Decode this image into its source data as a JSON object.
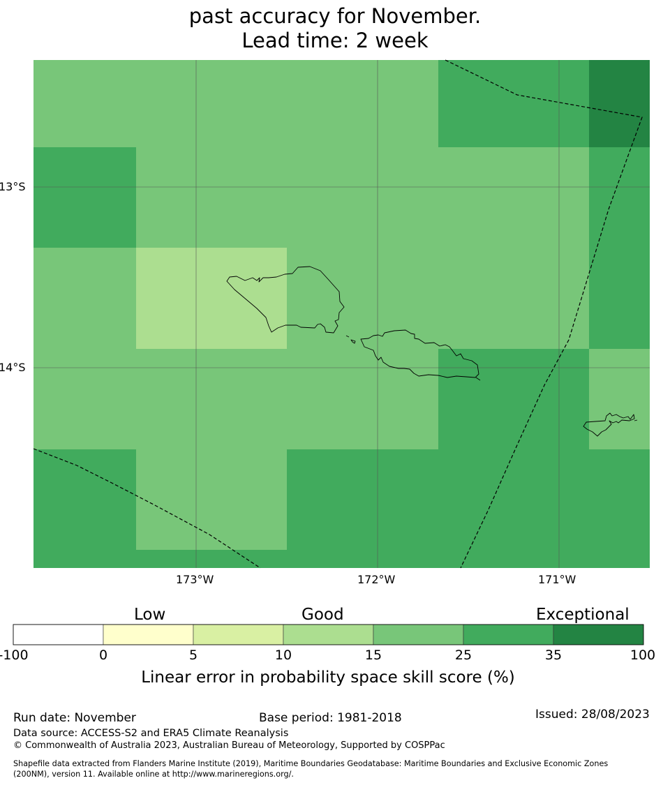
{
  "title": {
    "line1": "past accuracy for November.",
    "line2": "Lead time: 2 week"
  },
  "map": {
    "lat_labels": [
      "13°S",
      "14°S"
    ],
    "lon_labels": [
      "173°W",
      "172°W",
      "171°W"
    ],
    "colors": {
      "c10_15": "#acde90",
      "c15_25": "#78c679",
      "c25_35": "#41ab5d",
      "c35_100": "#238443",
      "gridline": "#555555",
      "coastline": "#000000",
      "boundary": "#000000"
    }
  },
  "colorbar": {
    "categories": [
      "Low",
      "Good",
      "Exceptional"
    ],
    "ticks": [
      "-100",
      "0",
      "5",
      "10",
      "15",
      "25",
      "35",
      "100"
    ],
    "colors": [
      "#ffffff",
      "#ffffcc",
      "#d9f0a3",
      "#acde90",
      "#78c679",
      "#41ab5d",
      "#238443"
    ],
    "title": "Linear error in probability space skill score (%)"
  },
  "footer": {
    "run_date": "Run date: November",
    "base_period": "Base period: 1981-2018",
    "issued": "Issued: 28/08/2023",
    "data_source": "Data source: ACCESS-S2 and ERA5 Climate Reanalysis",
    "copyright": "© Commonwealth of Australia 2023, Australian Bureau of Meteorology, Supported by COSPPac",
    "shapefile_line1": "Shapefile data extracted from Flanders Marine Institute (2019), Maritime Boundaries Geodatabase: Maritime Boundaries and Exclusive Economic Zones",
    "shapefile_line2": "(200NM), version 11. Available online at http://www.marineregions.org/."
  }
}
